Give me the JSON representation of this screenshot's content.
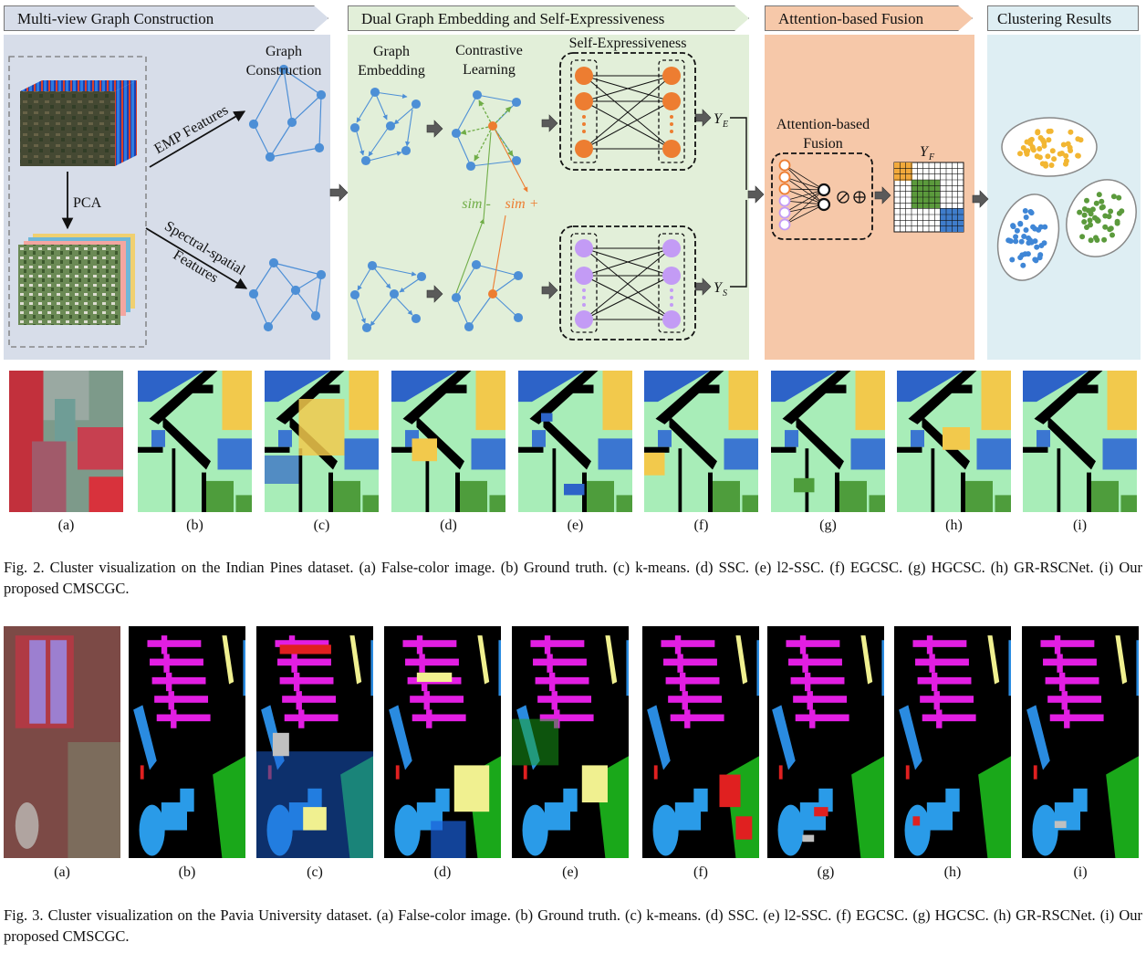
{
  "diagram": {
    "sections": [
      {
        "title": "Multi-view Graph Construction"
      },
      {
        "title": "Dual Graph Embedding and Self-Expressiveness"
      },
      {
        "title": "Attention-based Fusion"
      },
      {
        "title": "Clustering Results"
      }
    ],
    "labels": {
      "graph_construction_1": "Graph",
      "graph_construction_2": "Construction",
      "emp_features": "EMP Features",
      "pca": "PCA",
      "spectral_spatial_1": "Spectral-spatial",
      "spectral_spatial_2": "Features",
      "graph_embedding_1": "Graph",
      "graph_embedding_2": "Embedding",
      "contrastive_1": "Contrastive",
      "contrastive_2": "Learning",
      "self_expressiveness": "Self-Expressiveness",
      "sim_minus": "sim -",
      "sim_plus": "sim +",
      "y_e": "Y",
      "y_e_sub": "E",
      "y_s": "Y",
      "y_s_sub": "S",
      "attention_1": "Attention-based",
      "attention_2": "Fusion",
      "y_f": "Y",
      "y_f_sub": "F"
    },
    "colors": {
      "panel1": "#d7dde9",
      "panel2": "#e2efd9",
      "panel3": "#f6c8a9",
      "panel4": "#deeef3",
      "orange": "#ed7d31",
      "purple": "#c39bf5",
      "node_blue": "#4d8fd6",
      "green_arrow": "#70ad47"
    }
  },
  "figure2": {
    "subfigs": [
      "(a)",
      "(b)",
      "(c)",
      "(d)",
      "(e)",
      "(f)",
      "(g)",
      "(h)",
      "(i)"
    ],
    "caption": "Fig. 2.   Cluster visualization on the Indian Pines dataset. (a) False-color image. (b) Ground truth. (c) k-means. (d) SSC. (e) l2-SSC. (f) EGCSC. (g) HGCSC. (h) GR-RSCNet. (i) Our proposed CMSCGC."
  },
  "figure3": {
    "subfigs": [
      "(a)",
      "(b)",
      "(c)",
      "(d)",
      "(e)",
      "(f)",
      "(g)",
      "(h)",
      "(i)"
    ],
    "caption": "Fig. 3.   Cluster visualization on the Pavia University dataset. (a) False-color image. (b) Ground truth. (c) k-means. (d) SSC. (e) l2-SSC. (f) EGCSC. (g) HGCSC. (h) GR-RSCNet. (i) Our proposed CMSCGC."
  }
}
